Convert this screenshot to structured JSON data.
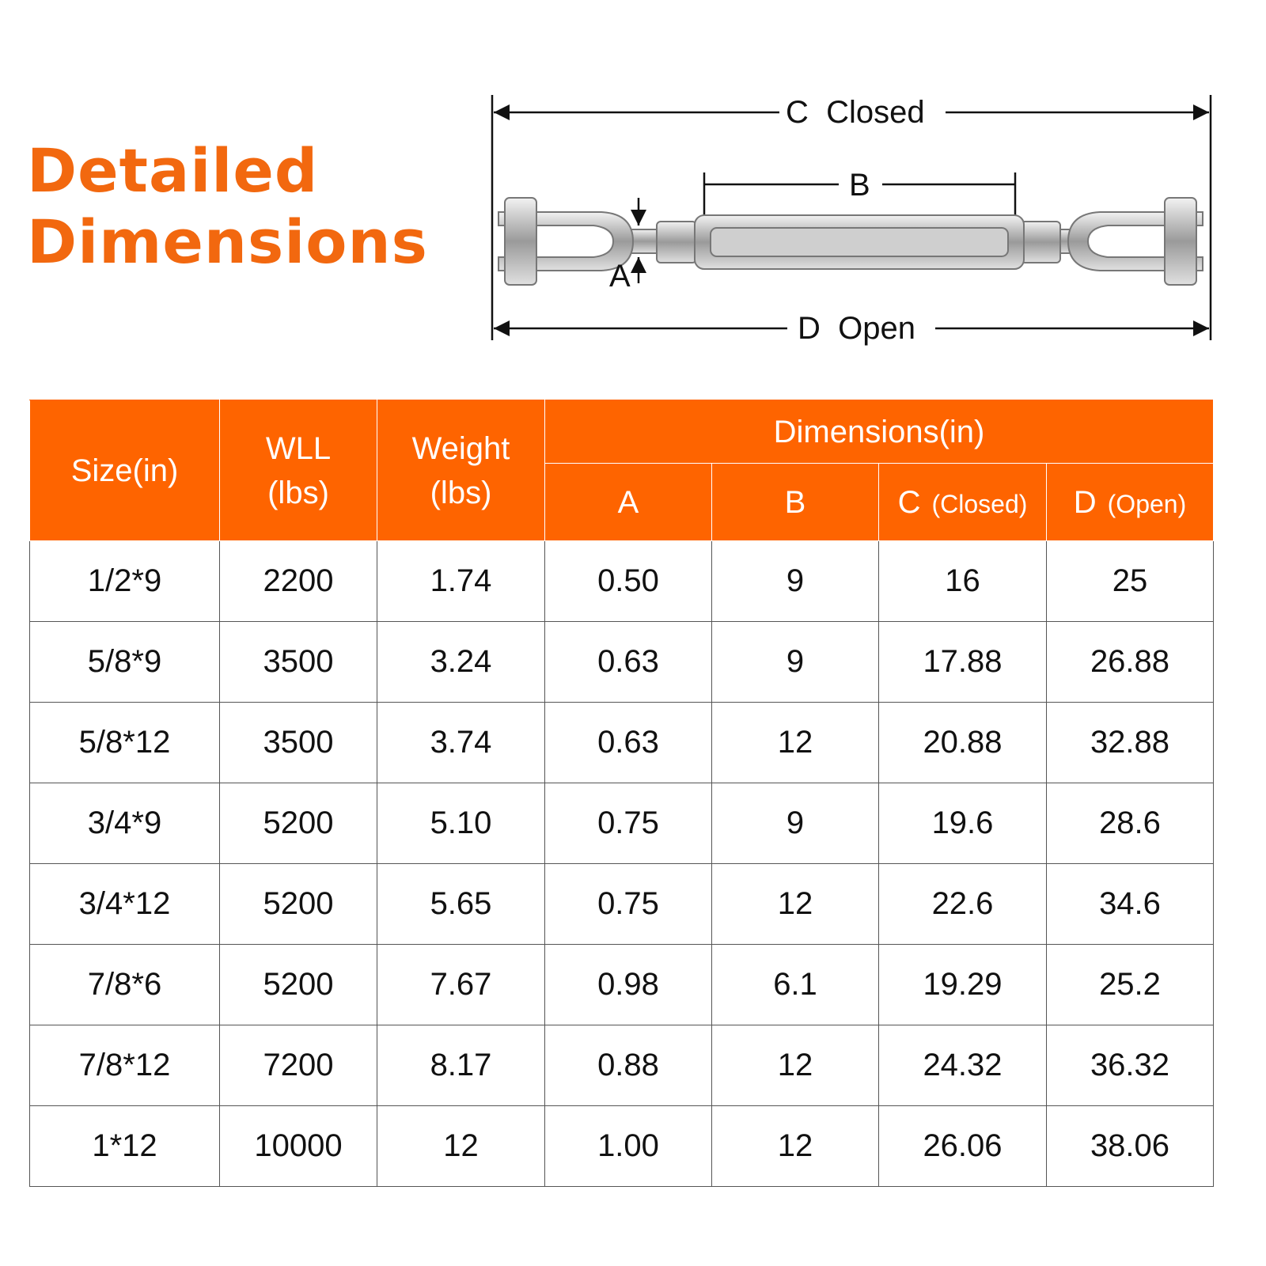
{
  "title": {
    "line1": "Detailed",
    "line2": "Dimensions"
  },
  "diagram": {
    "c_label": "C  Closed",
    "b_label": "B",
    "a_label": "A",
    "d_label": "D  Open"
  },
  "table": {
    "header": {
      "size": "Size(in)",
      "wll": [
        "WLL",
        "(lbs)"
      ],
      "weight": [
        "Weight",
        "(lbs)"
      ],
      "dimensions": "Dimensions(in)",
      "sub": [
        {
          "letter": "A"
        },
        {
          "letter": "B"
        },
        {
          "letter": "C",
          "note": "(Closed)"
        },
        {
          "letter": "D",
          "note": "(Open)"
        }
      ]
    },
    "rows": [
      [
        "1/2*9",
        "2200",
        "1.74",
        "0.50",
        "9",
        "16",
        "25"
      ],
      [
        "5/8*9",
        "3500",
        "3.24",
        "0.63",
        "9",
        "17.88",
        "26.88"
      ],
      [
        "5/8*12",
        "3500",
        "3.74",
        "0.63",
        "12",
        "20.88",
        "32.88"
      ],
      [
        "3/4*9",
        "5200",
        "5.10",
        "0.75",
        "9",
        "19.6",
        "28.6"
      ],
      [
        "3/4*12",
        "5200",
        "5.65",
        "0.75",
        "12",
        "22.6",
        "34.6"
      ],
      [
        "7/8*6",
        "5200",
        "7.67",
        "0.98",
        "6.1",
        "19.29",
        "25.2"
      ],
      [
        "7/8*12",
        "7200",
        "8.17",
        "0.88",
        "12",
        "24.32",
        "36.32"
      ],
      [
        "1*12",
        "10000",
        "12",
        "1.00",
        "12",
        "26.06",
        "38.06"
      ]
    ]
  }
}
